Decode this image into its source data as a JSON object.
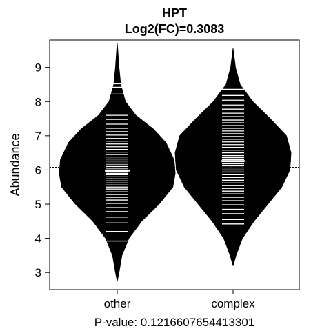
{
  "chart_data": {
    "type": "beanplot",
    "title": "HPT",
    "subtitle": "Log2(FC)=0.3083",
    "ylabel": "Abundance",
    "xlabel": "P-value: 0.1216607654413301",
    "categories": [
      "other",
      "complex"
    ],
    "ylim": [
      2.5,
      9.8
    ],
    "yticks": [
      3,
      4,
      5,
      6,
      7,
      8,
      9
    ],
    "overall_mean": 6.08,
    "series": [
      {
        "category": "other",
        "mean": 5.98,
        "density": [
          [
            2.75,
            0.0
          ],
          [
            3.0,
            0.03
          ],
          [
            3.5,
            0.08
          ],
          [
            4.0,
            0.2
          ],
          [
            4.5,
            0.42
          ],
          [
            5.0,
            0.72
          ],
          [
            5.5,
            0.96
          ],
          [
            5.9,
            1.0
          ],
          [
            6.3,
            0.98
          ],
          [
            6.8,
            0.84
          ],
          [
            7.2,
            0.62
          ],
          [
            7.6,
            0.32
          ],
          [
            8.0,
            0.14
          ],
          [
            8.5,
            0.06
          ],
          [
            9.0,
            0.03
          ],
          [
            9.5,
            0.01
          ],
          [
            9.7,
            0.0
          ]
        ],
        "observations": [
          3.92,
          4.2,
          4.45,
          4.62,
          4.78,
          4.9,
          5.02,
          5.12,
          5.2,
          5.28,
          5.36,
          5.44,
          5.5,
          5.56,
          5.62,
          5.68,
          5.74,
          5.8,
          5.86,
          5.9,
          5.95,
          6.0,
          6.05,
          6.1,
          6.15,
          6.2,
          6.26,
          6.32,
          6.38,
          6.45,
          6.52,
          6.6,
          6.68,
          6.76,
          6.84,
          6.92,
          7.02,
          7.12,
          7.22,
          7.34,
          7.48,
          7.6,
          8.22,
          8.42,
          8.52
        ]
      },
      {
        "category": "complex",
        "mean": 6.26,
        "density": [
          [
            3.2,
            0.0
          ],
          [
            3.5,
            0.05
          ],
          [
            4.0,
            0.16
          ],
          [
            4.5,
            0.36
          ],
          [
            5.0,
            0.6
          ],
          [
            5.5,
            0.84
          ],
          [
            6.0,
            0.98
          ],
          [
            6.5,
            1.0
          ],
          [
            7.0,
            0.92
          ],
          [
            7.5,
            0.64
          ],
          [
            8.0,
            0.34
          ],
          [
            8.5,
            0.12
          ],
          [
            9.0,
            0.04
          ],
          [
            9.55,
            0.0
          ]
        ],
        "observations": [
          4.42,
          4.55,
          4.72,
          4.85,
          4.98,
          5.1,
          5.2,
          5.3,
          5.38,
          5.46,
          5.54,
          5.62,
          5.7,
          5.78,
          5.86,
          5.94,
          6.0,
          6.06,
          6.12,
          6.18,
          6.24,
          6.3,
          6.36,
          6.42,
          6.5,
          6.58,
          6.66,
          6.74,
          6.82,
          6.9,
          6.98,
          7.06,
          7.14,
          7.22,
          7.3,
          7.38,
          7.46,
          7.56,
          7.66,
          7.78,
          7.9,
          8.04,
          8.18,
          8.36
        ]
      }
    ]
  }
}
